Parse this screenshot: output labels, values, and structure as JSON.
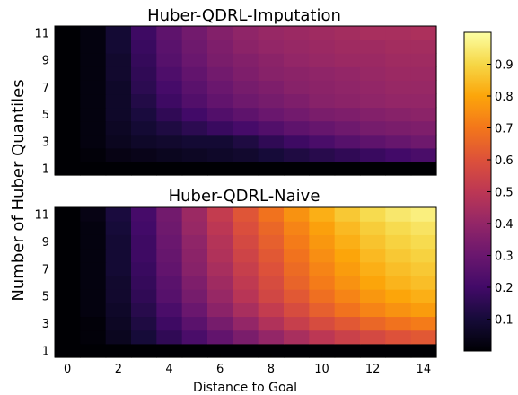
{
  "chart_data": [
    {
      "type": "heatmap",
      "title": "Huber-QDRL-Imputation",
      "x": [
        0,
        1,
        2,
        3,
        4,
        5,
        6,
        7,
        8,
        9,
        10,
        11,
        12,
        13,
        14
      ],
      "y": [
        1,
        2,
        3,
        4,
        5,
        6,
        7,
        8,
        9,
        10,
        11
      ],
      "xticks": [
        "0",
        "2",
        "4",
        "6",
        "8",
        "10",
        "12",
        "14"
      ],
      "yticks": [
        "1",
        "3",
        "5",
        "7",
        "9",
        "11"
      ],
      "xlabel": "",
      "values": [
        [
          0.0,
          0.0,
          0.0,
          0.0,
          0.0,
          0.0,
          0.0,
          0.0,
          0.0,
          0.0,
          0.0,
          0.0,
          0.0,
          0.0,
          0.0
        ],
        [
          0.0,
          0.01,
          0.03,
          0.04,
          0.05,
          0.06,
          0.07,
          0.08,
          0.1,
          0.12,
          0.14,
          0.16,
          0.18,
          0.2,
          0.22
        ],
        [
          0.0,
          0.02,
          0.05,
          0.07,
          0.08,
          0.09,
          0.09,
          0.12,
          0.16,
          0.19,
          0.22,
          0.25,
          0.27,
          0.29,
          0.31
        ],
        [
          0.0,
          0.02,
          0.06,
          0.09,
          0.12,
          0.15,
          0.18,
          0.21,
          0.24,
          0.27,
          0.29,
          0.31,
          0.33,
          0.34,
          0.35
        ],
        [
          0.0,
          0.02,
          0.07,
          0.11,
          0.16,
          0.2,
          0.24,
          0.27,
          0.3,
          0.32,
          0.34,
          0.35,
          0.36,
          0.37,
          0.38
        ],
        [
          0.0,
          0.02,
          0.07,
          0.13,
          0.19,
          0.24,
          0.28,
          0.31,
          0.33,
          0.35,
          0.37,
          0.38,
          0.39,
          0.4,
          0.4
        ],
        [
          0.0,
          0.02,
          0.07,
          0.15,
          0.21,
          0.26,
          0.3,
          0.33,
          0.35,
          0.37,
          0.38,
          0.39,
          0.4,
          0.41,
          0.41
        ],
        [
          0.0,
          0.02,
          0.08,
          0.16,
          0.23,
          0.28,
          0.32,
          0.35,
          0.37,
          0.38,
          0.39,
          0.4,
          0.41,
          0.42,
          0.42
        ],
        [
          0.0,
          0.02,
          0.08,
          0.17,
          0.25,
          0.3,
          0.34,
          0.36,
          0.38,
          0.4,
          0.41,
          0.42,
          0.42,
          0.43,
          0.43
        ],
        [
          0.0,
          0.02,
          0.09,
          0.18,
          0.26,
          0.31,
          0.35,
          0.38,
          0.4,
          0.41,
          0.42,
          0.43,
          0.43,
          0.44,
          0.44
        ],
        [
          0.0,
          0.02,
          0.09,
          0.19,
          0.27,
          0.32,
          0.36,
          0.39,
          0.41,
          0.42,
          0.43,
          0.44,
          0.45,
          0.45,
          0.46
        ]
      ]
    },
    {
      "type": "heatmap",
      "title": "Huber-QDRL-Naive",
      "x": [
        0,
        1,
        2,
        3,
        4,
        5,
        6,
        7,
        8,
        9,
        10,
        11,
        12,
        13,
        14
      ],
      "y": [
        1,
        2,
        3,
        4,
        5,
        6,
        7,
        8,
        9,
        10,
        11
      ],
      "xticks": [
        "0",
        "2",
        "4",
        "6",
        "8",
        "10",
        "12",
        "14"
      ],
      "yticks": [
        "1",
        "3",
        "5",
        "7",
        "9",
        "11"
      ],
      "xlabel": "Distance to Goal",
      "values": [
        [
          0.0,
          0.0,
          0.0,
          0.0,
          0.0,
          0.0,
          0.0,
          0.0,
          0.0,
          0.0,
          0.0,
          0.0,
          0.0,
          0.0,
          0.0
        ],
        [
          0.0,
          0.01,
          0.05,
          0.1,
          0.16,
          0.22,
          0.28,
          0.34,
          0.4,
          0.45,
          0.5,
          0.54,
          0.57,
          0.6,
          0.62
        ],
        [
          0.0,
          0.01,
          0.06,
          0.12,
          0.19,
          0.26,
          0.33,
          0.4,
          0.47,
          0.53,
          0.58,
          0.62,
          0.66,
          0.69,
          0.71
        ],
        [
          0.0,
          0.02,
          0.07,
          0.14,
          0.22,
          0.3,
          0.38,
          0.45,
          0.52,
          0.58,
          0.64,
          0.69,
          0.73,
          0.76,
          0.78
        ],
        [
          0.0,
          0.02,
          0.08,
          0.16,
          0.25,
          0.33,
          0.41,
          0.49,
          0.56,
          0.62,
          0.68,
          0.73,
          0.77,
          0.8,
          0.82
        ],
        [
          0.0,
          0.02,
          0.08,
          0.17,
          0.26,
          0.35,
          0.43,
          0.51,
          0.58,
          0.65,
          0.71,
          0.76,
          0.8,
          0.83,
          0.85
        ],
        [
          0.0,
          0.02,
          0.09,
          0.18,
          0.28,
          0.37,
          0.45,
          0.53,
          0.6,
          0.67,
          0.73,
          0.78,
          0.82,
          0.85,
          0.87
        ],
        [
          0.0,
          0.02,
          0.09,
          0.19,
          0.29,
          0.38,
          0.47,
          0.55,
          0.62,
          0.69,
          0.75,
          0.8,
          0.84,
          0.87,
          0.89
        ],
        [
          0.0,
          0.02,
          0.09,
          0.19,
          0.3,
          0.39,
          0.48,
          0.57,
          0.64,
          0.71,
          0.77,
          0.82,
          0.86,
          0.89,
          0.91
        ],
        [
          0.0,
          0.02,
          0.1,
          0.2,
          0.31,
          0.41,
          0.5,
          0.59,
          0.66,
          0.73,
          0.79,
          0.84,
          0.88,
          0.91,
          0.93
        ],
        [
          0.0,
          0.03,
          0.11,
          0.21,
          0.32,
          0.42,
          0.52,
          0.61,
          0.69,
          0.76,
          0.82,
          0.87,
          0.91,
          0.94,
          0.96
        ]
      ]
    }
  ],
  "shared_ylabel": "Number of Huber Quantiles",
  "colorbar": {
    "colormap": "inferno",
    "range": [
      0,
      1
    ],
    "ticks": [
      "0.1",
      "0.2",
      "0.3",
      "0.4",
      "0.5",
      "0.6",
      "0.7",
      "0.8",
      "0.9"
    ],
    "tick_values": [
      0.1,
      0.2,
      0.3,
      0.4,
      0.5,
      0.6,
      0.7,
      0.8,
      0.9
    ]
  }
}
